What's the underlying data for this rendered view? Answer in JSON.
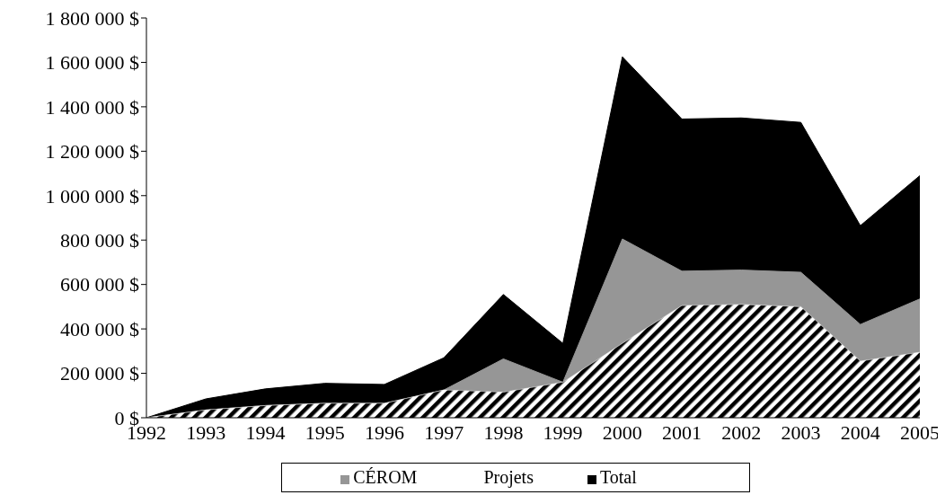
{
  "chart_data": {
    "type": "area",
    "categories": [
      "1992",
      "1993",
      "1994",
      "1995",
      "1996",
      "1997",
      "1998",
      "1999",
      "2000",
      "2001",
      "2002",
      "2003",
      "2004",
      "2005"
    ],
    "series": [
      {
        "name": "Total",
        "color": "#000000",
        "values": [
          0,
          85000,
          130000,
          155000,
          150000,
          270000,
          555000,
          335000,
          1625000,
          1345000,
          1350000,
          1330000,
          865000,
          1090000
        ]
      },
      {
        "name": "CÉROM",
        "color": "#969696",
        "values": [
          0,
          35000,
          55000,
          65000,
          65000,
          125000,
          265000,
          160000,
          805000,
          660000,
          665000,
          655000,
          420000,
          535000
        ]
      },
      {
        "name": "Projets",
        "color": "#000000",
        "values": [
          0,
          35000,
          55000,
          65000,
          65000,
          125000,
          115000,
          160000,
          335000,
          505000,
          510000,
          500000,
          255000,
          295000
        ]
      }
    ],
    "ylim": [
      0,
      1800000
    ],
    "yticks": [
      {
        "value": 0,
        "label": "0 $"
      },
      {
        "value": 200000,
        "label": "200 000 $"
      },
      {
        "value": 400000,
        "label": "400 000 $"
      },
      {
        "value": 600000,
        "label": "600 000 $"
      },
      {
        "value": 800000,
        "label": "800 000 $"
      },
      {
        "value": 1000000,
        "label": "1 000 000 $"
      },
      {
        "value": 1200000,
        "label": "1 200 000 $"
      },
      {
        "value": 1400000,
        "label": "1 400 000 $"
      },
      {
        "value": 1600000,
        "label": "1 600 000 $"
      },
      {
        "value": 1800000,
        "label": "1 800 000 $"
      }
    ],
    "legend": "bottom",
    "grid": false
  }
}
